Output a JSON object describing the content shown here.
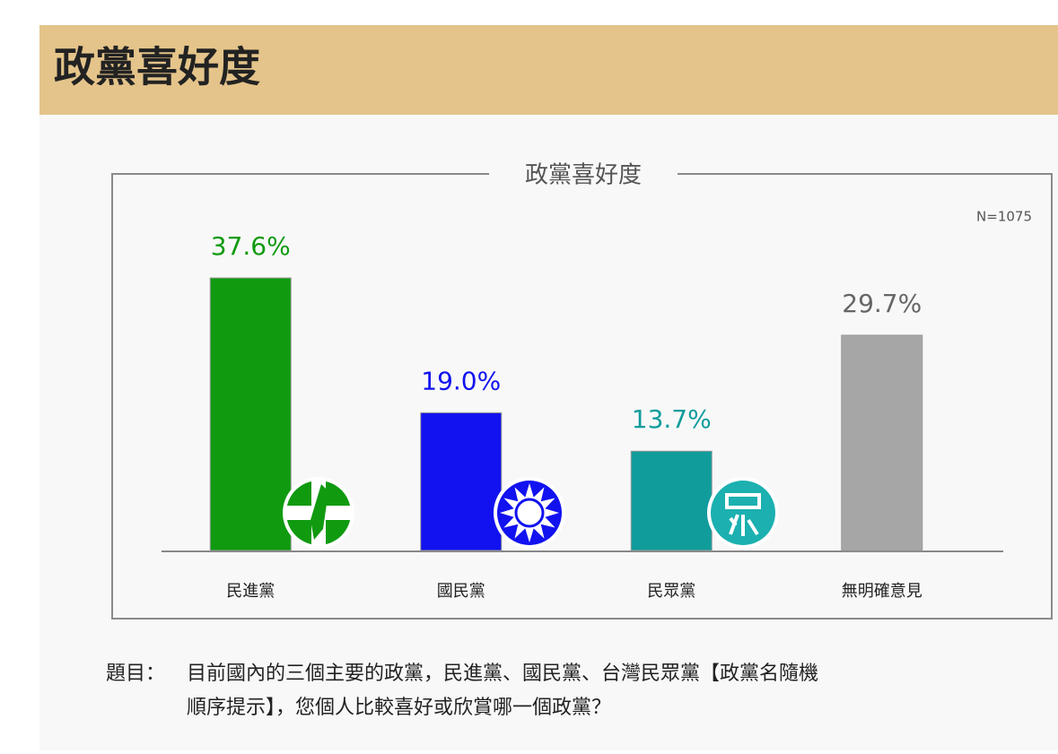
{
  "header": {
    "title": "政黨喜好度"
  },
  "chart_data": {
    "type": "bar",
    "title": "政黨喜好度",
    "note": "N=1075",
    "categories": [
      "民進黨",
      "國民黨",
      "民眾黨",
      "無明確意見"
    ],
    "values": [
      37.6,
      19.0,
      13.7,
      29.7
    ],
    "value_labels": [
      "37.6%",
      "19.0%",
      "13.7%",
      "29.7%"
    ],
    "colors": [
      "#109a10",
      "#1212f0",
      "#119c9c",
      "#a6a6a6"
    ],
    "label_colors": [
      "#109a10",
      "#1212f0",
      "#119c9c",
      "#666666"
    ]
  },
  "question": {
    "label": "題目：",
    "lines": [
      "目前國內的三個主要的政黨，民進黨、國民黨、台灣民眾黨【政黨名隨機",
      "順序提示】，您個人比較喜好或欣賞哪一個政黨？"
    ]
  }
}
